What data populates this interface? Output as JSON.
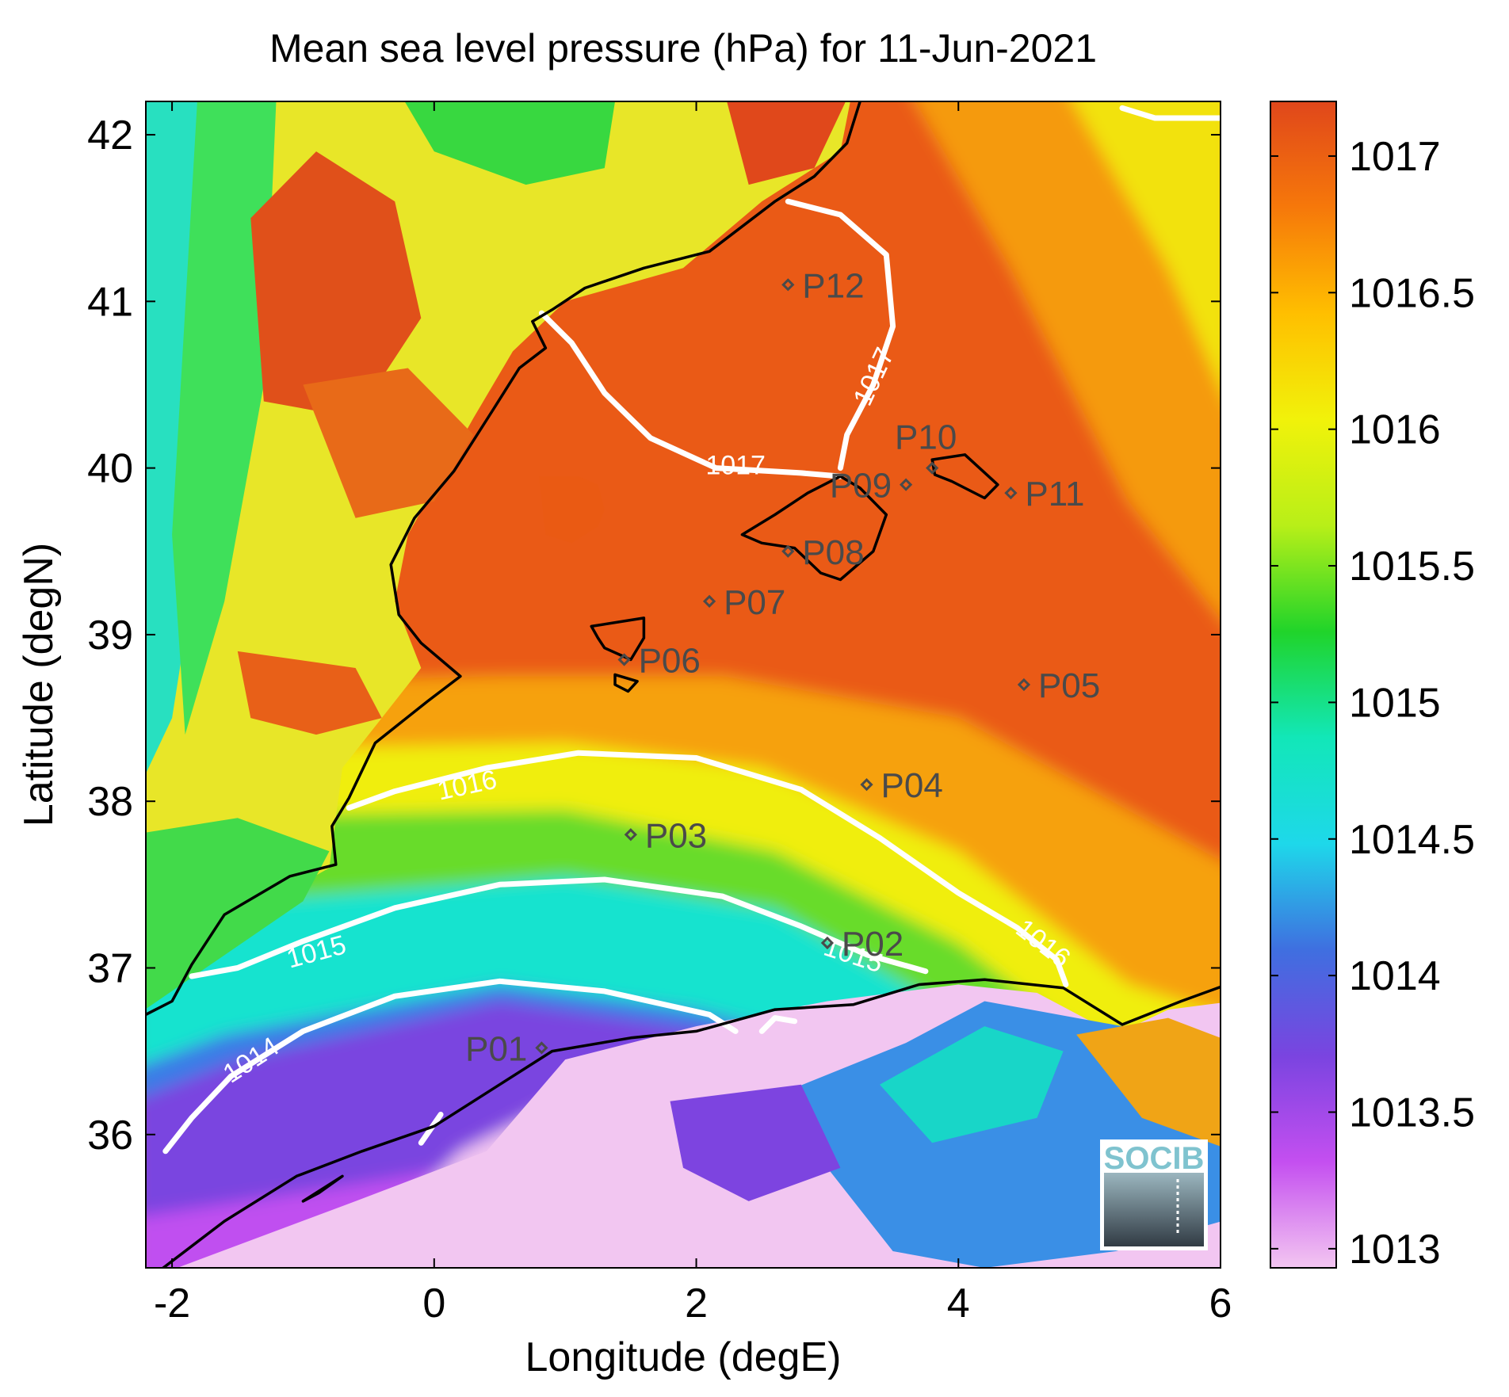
{
  "title": "Mean sea level pressure (hPa) for 11-Jun-2021",
  "chart_data": {
    "type": "heatmap",
    "title": "Mean sea level pressure (hPa) for 11-Jun-2021",
    "xlabel": "Longitude (degE)",
    "ylabel": "Latitude (degN)",
    "xlim": [
      -2.2,
      6
    ],
    "ylim": [
      35.2,
      42.2
    ],
    "xticks": [
      -2,
      0,
      2,
      4,
      6
    ],
    "yticks": [
      36,
      37,
      38,
      39,
      40,
      41,
      42
    ],
    "colorbar": {
      "range": [
        1012.93,
        1017.2
      ],
      "ticks": [
        1013,
        1013.5,
        1014,
        1014.5,
        1015,
        1015.5,
        1016,
        1016.5,
        1017
      ],
      "colors": [
        "#f3c6f1",
        "#c44ff0",
        "#7a44e0",
        "#3f6fe0",
        "#1ed8ea",
        "#12e7b8",
        "#20d42a",
        "#b8ef18",
        "#f1f20a",
        "#ffbf00",
        "#f6780a",
        "#e0471b"
      ]
    },
    "contour_labels": [
      {
        "text": "1014",
        "lon": -1.4,
        "lat": 36.45,
        "angle": -33
      },
      {
        "text": "1015",
        "lon": -0.9,
        "lat": 37.1,
        "angle": -15
      },
      {
        "text": "1015",
        "lon": 3.2,
        "lat": 37.08,
        "angle": 18
      },
      {
        "text": "1016",
        "lon": 0.25,
        "lat": 38.1,
        "angle": -12
      },
      {
        "text": "1016",
        "lon": 4.65,
        "lat": 37.15,
        "angle": 38
      },
      {
        "text": "1017",
        "lon": 2.3,
        "lat": 40.02,
        "angle": 0
      },
      {
        "text": "1017",
        "lon": 3.35,
        "lat": 40.55,
        "angle": -65
      }
    ],
    "stations": [
      {
        "name": "P01",
        "lon": 0.82,
        "lat": 36.52,
        "label_side": "left"
      },
      {
        "name": "P02",
        "lon": 3.0,
        "lat": 37.15,
        "label_side": "right"
      },
      {
        "name": "P03",
        "lon": 1.5,
        "lat": 37.8,
        "label_side": "right"
      },
      {
        "name": "P04",
        "lon": 3.3,
        "lat": 38.1,
        "label_side": "right"
      },
      {
        "name": "P05",
        "lon": 4.5,
        "lat": 38.7,
        "label_side": "right"
      },
      {
        "name": "P06",
        "lon": 1.45,
        "lat": 38.85,
        "label_side": "right"
      },
      {
        "name": "P07",
        "lon": 2.1,
        "lat": 39.2,
        "label_side": "right"
      },
      {
        "name": "P08",
        "lon": 2.7,
        "lat": 39.5,
        "label_side": "right"
      },
      {
        "name": "P09",
        "lon": 3.6,
        "lat": 39.9,
        "label_side": "left"
      },
      {
        "name": "P10",
        "lon": 3.8,
        "lat": 40.0,
        "label_side": "above"
      },
      {
        "name": "P11",
        "lon": 4.4,
        "lat": 39.85,
        "label_side": "right"
      },
      {
        "name": "P12",
        "lon": 2.7,
        "lat": 41.1,
        "label_side": "right"
      }
    ]
  },
  "logo": {
    "text": "SOCIB"
  }
}
